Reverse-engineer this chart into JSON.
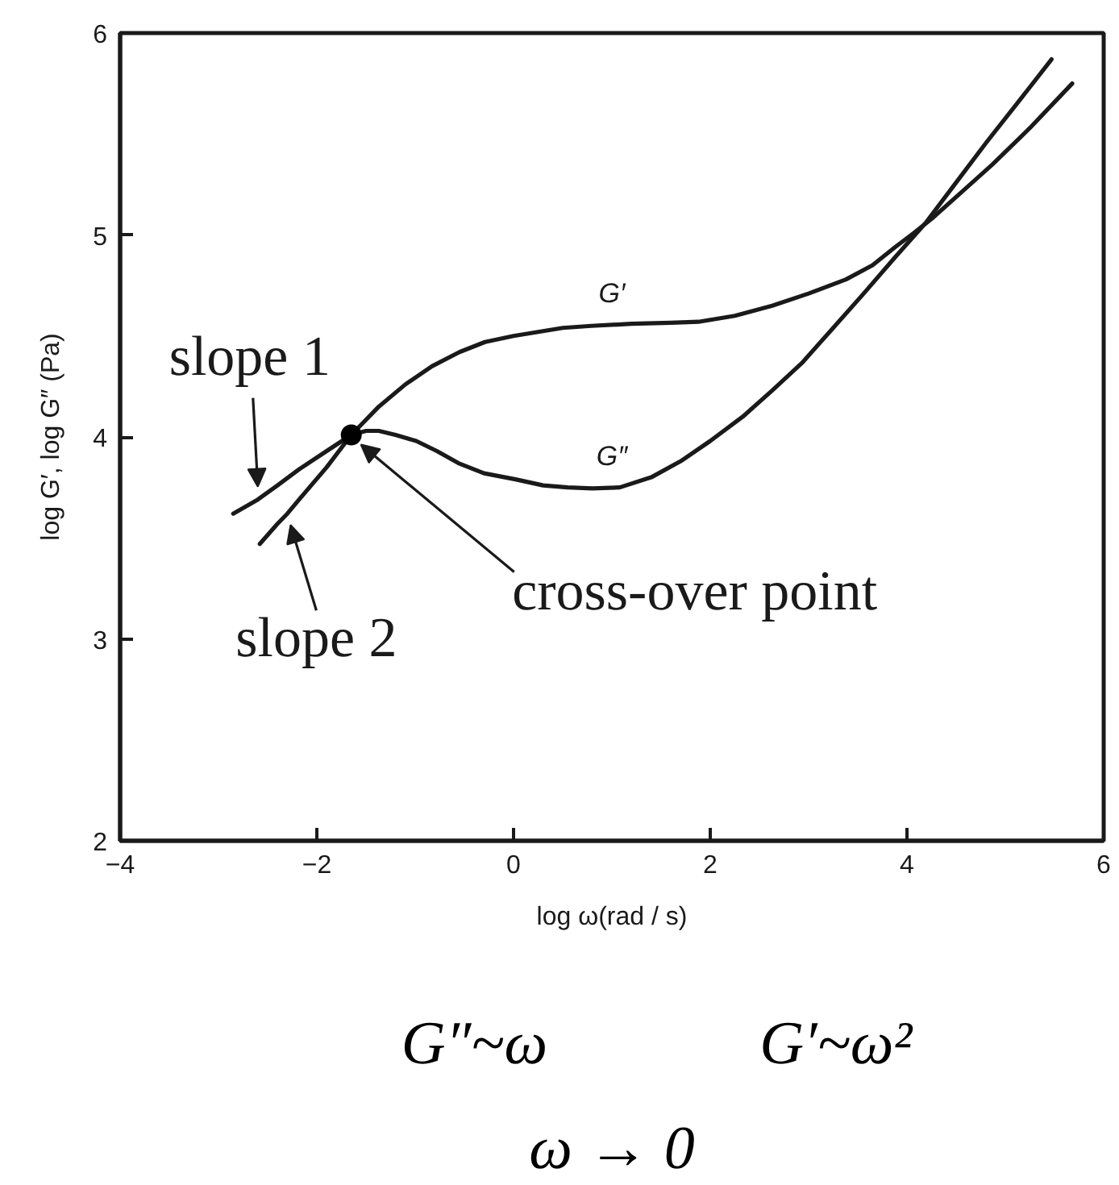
{
  "chart_data": {
    "type": "line",
    "xlabel": "log ω(rad / s)",
    "ylabel": "log G′, log G″ (Pa)",
    "xlim": [
      -4,
      6
    ],
    "ylim": [
      2,
      6
    ],
    "xticks": [
      {
        "value": -4,
        "label": "−4"
      },
      {
        "value": -2,
        "label": "−2"
      },
      0,
      2,
      4,
      6
    ],
    "yticks": [
      2,
      3,
      4,
      5,
      6
    ],
    "grid": false,
    "legend": false,
    "line_style": "solid",
    "series": [
      {
        "name": "G′",
        "color": "#1a1a1a",
        "x": [
          -2.58,
          -2.4,
          -2.3,
          -2.18,
          -1.9,
          -1.65,
          -1.37,
          -1.1,
          -0.83,
          -0.55,
          -0.29,
          0.0,
          0.25,
          0.5,
          0.79,
          1.2,
          1.6,
          1.88,
          2.25,
          2.63,
          3.0,
          3.38,
          3.65,
          3.88,
          4.07,
          4.25,
          4.55,
          4.87,
          5.25,
          5.68
        ],
        "values": [
          3.47,
          3.57,
          3.62,
          3.69,
          3.85,
          4.01,
          4.15,
          4.26,
          4.35,
          4.42,
          4.47,
          4.5,
          4.52,
          4.54,
          4.55,
          4.56,
          4.565,
          4.57,
          4.6,
          4.65,
          4.71,
          4.78,
          4.85,
          4.94,
          5.01,
          5.08,
          5.21,
          5.35,
          5.53,
          5.75
        ]
      },
      {
        "name": "G″",
        "color": "#1a1a1a",
        "x": [
          -2.85,
          -2.6,
          -2.4,
          -2.18,
          -1.9,
          -1.65,
          -1.5,
          -1.37,
          -1.2,
          -0.99,
          -0.78,
          -0.56,
          -0.3,
          0.02,
          0.3,
          0.55,
          0.8,
          1.08,
          1.4,
          1.7,
          2.0,
          2.33,
          2.63,
          2.94,
          3.25,
          3.56,
          3.88,
          4.19,
          4.5,
          4.81,
          5.15,
          5.47
        ],
        "values": [
          3.62,
          3.69,
          3.76,
          3.84,
          3.93,
          4.01,
          4.03,
          4.03,
          4.01,
          3.98,
          3.93,
          3.87,
          3.82,
          3.79,
          3.76,
          3.75,
          3.745,
          3.75,
          3.8,
          3.88,
          3.98,
          4.1,
          4.23,
          4.37,
          4.54,
          4.71,
          4.89,
          5.06,
          5.26,
          5.46,
          5.67,
          5.87
        ]
      },
      {
        "type": "scatter",
        "color": "#000000",
        "marker": "circle",
        "x": [
          -1.65
        ],
        "values": [
          4.01
        ]
      }
    ],
    "annotations": [
      {
        "text": "slope 1",
        "x": -2.6,
        "y": 3.69
      },
      {
        "text": "slope 2",
        "x": -2.3,
        "y": 3.62
      },
      {
        "text": "cross-over point",
        "x": -1.65,
        "y": 4.01
      },
      "G″~ω",
      "G′~ω²",
      "ω → 0"
    ]
  }
}
